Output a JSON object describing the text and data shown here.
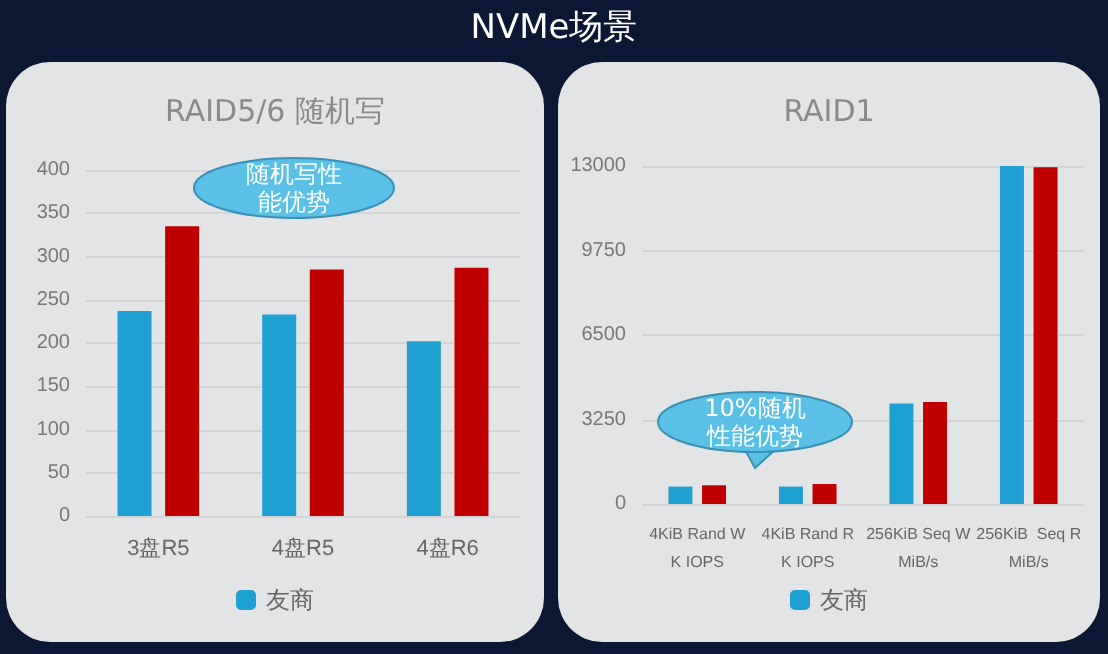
{
  "chart_data": [
    {
      "type": "bar",
      "title": "RAID5/6 随机写",
      "annotations": [
        "NVMe场景",
        "随机写性能优势"
      ],
      "categories": [
        "3盘R5",
        "4盘R5",
        "4盘R6"
      ],
      "series": [
        {
          "name": "友商",
          "color": "#1fa0d2",
          "values": [
            237,
            233,
            202
          ]
        },
        {
          "color": "#c00000",
          "values": [
            335,
            285,
            287
          ]
        }
      ],
      "ylim": [
        0,
        400
      ],
      "yticks": [
        0,
        50,
        100,
        150,
        200,
        250,
        300,
        350,
        400
      ],
      "grid": "y",
      "legend": "bottom"
    },
    {
      "type": "bar",
      "title": "RAID1",
      "annotations": [
        "10%随机性能优势"
      ],
      "categories": [
        "4KiB Rand W\nK IOPS",
        "4KiB Rand R\nK IOPS",
        "256KiB Seq W\nMiB/s",
        "256KiB  Seq R\nMiB/s"
      ],
      "series": [
        {
          "name": "友商",
          "color": "#1fa0d2",
          "values": [
            670,
            670,
            3870,
            13000
          ]
        },
        {
          "color": "#c00000",
          "values": [
            720,
            770,
            3920,
            12950
          ]
        }
      ],
      "ylim": [
        0,
        13000
      ],
      "yticks": [
        0,
        3250,
        6500,
        9750,
        13000
      ],
      "grid": "y",
      "legend": "bottom"
    }
  ]
}
